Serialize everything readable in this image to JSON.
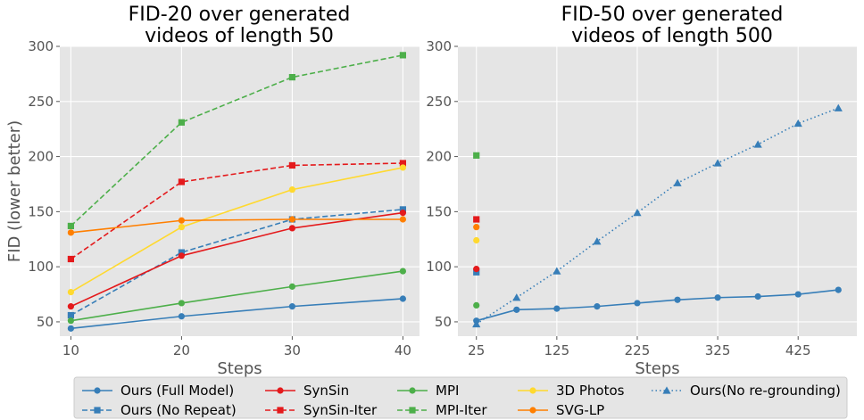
{
  "chart_data": [
    {
      "type": "line",
      "title": [
        "FID-20 over generated",
        "videos of length 50"
      ],
      "xlabel": "Steps",
      "ylabel": "FID (lower better)",
      "xlim": [
        9,
        41.5
      ],
      "ylim": [
        37,
        300
      ],
      "xticks": [
        10,
        20,
        30,
        40
      ],
      "xtick_labels": [
        "10",
        "20",
        "30",
        "40"
      ],
      "yticks": [
        50,
        100,
        150,
        200,
        250,
        300
      ],
      "ytick_labels": [
        "50",
        "100",
        "150",
        "200",
        "250",
        "300"
      ],
      "grid": true,
      "series": [
        {
          "name": "Ours (Full Model)",
          "color": "#377eb8",
          "marker": "circle",
          "dash": "solid",
          "x": [
            10,
            20,
            30,
            40
          ],
          "y": [
            44,
            55,
            64,
            71
          ]
        },
        {
          "name": "Ours (No Repeat)",
          "color": "#377eb8",
          "marker": "square",
          "dash": "dashed",
          "x": [
            10,
            20,
            30,
            40
          ],
          "y": [
            56,
            113,
            143,
            152
          ]
        },
        {
          "name": "SynSin",
          "color": "#e41a1c",
          "marker": "circle",
          "dash": "solid",
          "x": [
            10,
            20,
            30,
            40
          ],
          "y": [
            64,
            110,
            135,
            149
          ]
        },
        {
          "name": "SynSin-Iter",
          "color": "#e41a1c",
          "marker": "square",
          "dash": "dashed",
          "x": [
            10,
            20,
            30,
            40
          ],
          "y": [
            107,
            177,
            192,
            194
          ]
        },
        {
          "name": "MPI",
          "color": "#4daf4a",
          "marker": "circle",
          "dash": "solid",
          "x": [
            10,
            20,
            30,
            40
          ],
          "y": [
            51,
            67,
            82,
            96
          ]
        },
        {
          "name": "MPI-Iter",
          "color": "#4daf4a",
          "marker": "square",
          "dash": "dashed",
          "x": [
            10,
            20,
            30,
            40
          ],
          "y": [
            137,
            231,
            272,
            292
          ]
        },
        {
          "name": "3D Photos",
          "color": "#ffd92f",
          "marker": "circle",
          "dash": "solid",
          "x": [
            10,
            20,
            30,
            40
          ],
          "y": [
            77,
            136,
            170,
            190
          ]
        },
        {
          "name": "SVG-LP",
          "color": "#ff7f00",
          "marker": "circle",
          "dash": "solid",
          "x": [
            10,
            20,
            30,
            40
          ],
          "y": [
            131,
            142,
            143,
            143
          ]
        }
      ]
    },
    {
      "type": "line",
      "title": [
        "FID-50 over generated",
        "videos of length 500"
      ],
      "xlabel": "Steps",
      "ylabel": "",
      "xlim": [
        2,
        498
      ],
      "ylim": [
        37,
        300
      ],
      "xticks": [
        25,
        125,
        225,
        325,
        425
      ],
      "xtick_labels": [
        "25",
        "125",
        "225",
        "325",
        "425"
      ],
      "yticks": [
        50,
        100,
        150,
        200,
        250,
        300
      ],
      "ytick_labels": [
        "50",
        "100",
        "150",
        "200",
        "250",
        "300"
      ],
      "grid": true,
      "series": [
        {
          "name": "Ours (Full Model)",
          "color": "#377eb8",
          "marker": "circle",
          "dash": "solid",
          "x": [
            25,
            75,
            125,
            175,
            225,
            275,
            325,
            375,
            425,
            475
          ],
          "y": [
            51,
            61,
            62,
            64,
            67,
            70,
            72,
            73,
            75,
            79
          ]
        },
        {
          "name": "Ours (No Repeat)",
          "color": "#377eb8",
          "marker": "square",
          "dash": "none",
          "x": [
            25
          ],
          "y": [
            95
          ]
        },
        {
          "name": "SynSin",
          "color": "#e41a1c",
          "marker": "circle",
          "dash": "none",
          "x": [
            25
          ],
          "y": [
            98
          ]
        },
        {
          "name": "SynSin-Iter",
          "color": "#e41a1c",
          "marker": "square",
          "dash": "none",
          "x": [
            25
          ],
          "y": [
            143
          ]
        },
        {
          "name": "MPI",
          "color": "#4daf4a",
          "marker": "circle",
          "dash": "none",
          "x": [
            25
          ],
          "y": [
            65
          ]
        },
        {
          "name": "MPI-Iter",
          "color": "#4daf4a",
          "marker": "square",
          "dash": "none",
          "x": [
            25
          ],
          "y": [
            201
          ]
        },
        {
          "name": "3D Photos",
          "color": "#ffd92f",
          "marker": "circle",
          "dash": "none",
          "x": [
            25
          ],
          "y": [
            124
          ]
        },
        {
          "name": "SVG-LP",
          "color": "#ff7f00",
          "marker": "circle",
          "dash": "none",
          "x": [
            25
          ],
          "y": [
            136
          ]
        },
        {
          "name": "Ours(No re-grounding)",
          "color": "#377eb8",
          "marker": "triangle",
          "dash": "dotted",
          "x": [
            25,
            75,
            125,
            175,
            225,
            275,
            325,
            375,
            425,
            475
          ],
          "y": [
            48,
            72,
            96,
            123,
            149,
            176,
            194,
            211,
            230,
            244
          ]
        }
      ]
    }
  ],
  "legend": {
    "position": "bottom",
    "entries": [
      {
        "label": "Ours (Full Model)",
        "color": "#377eb8",
        "marker": "circle",
        "dash": "solid"
      },
      {
        "label": "Ours (No Repeat)",
        "color": "#377eb8",
        "marker": "square",
        "dash": "dashed"
      },
      {
        "label": "SynSin",
        "color": "#e41a1c",
        "marker": "circle",
        "dash": "solid"
      },
      {
        "label": "SynSin-Iter",
        "color": "#e41a1c",
        "marker": "square",
        "dash": "dashed"
      },
      {
        "label": "MPI",
        "color": "#4daf4a",
        "marker": "circle",
        "dash": "solid"
      },
      {
        "label": "MPI-Iter",
        "color": "#4daf4a",
        "marker": "square",
        "dash": "dashed"
      },
      {
        "label": "3D Photos",
        "color": "#ffd92f",
        "marker": "circle",
        "dash": "solid"
      },
      {
        "label": "SVG-LP",
        "color": "#ff7f00",
        "marker": "circle",
        "dash": "solid"
      },
      {
        "label": "Ours(No re-grounding)",
        "color": "#377eb8",
        "marker": "triangle",
        "dash": "dotted"
      }
    ]
  }
}
